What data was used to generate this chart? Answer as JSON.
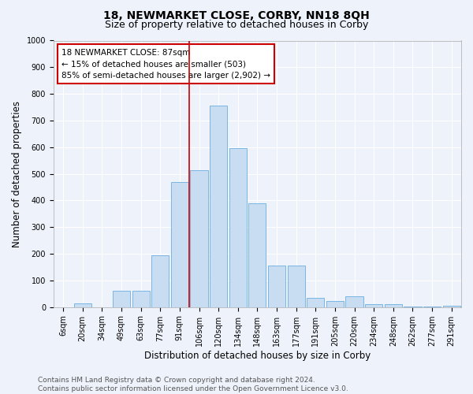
{
  "title": "18, NEWMARKET CLOSE, CORBY, NN18 8QH",
  "subtitle": "Size of property relative to detached houses in Corby",
  "xlabel": "Distribution of detached houses by size in Corby",
  "ylabel": "Number of detached properties",
  "categories": [
    "6sqm",
    "20sqm",
    "34sqm",
    "49sqm",
    "63sqm",
    "77sqm",
    "91sqm",
    "106sqm",
    "120sqm",
    "134sqm",
    "148sqm",
    "163sqm",
    "177sqm",
    "191sqm",
    "205sqm",
    "220sqm",
    "234sqm",
    "248sqm",
    "262sqm",
    "277sqm",
    "291sqm"
  ],
  "values": [
    0,
    13,
    0,
    60,
    60,
    195,
    470,
    515,
    755,
    595,
    390,
    155,
    155,
    35,
    22,
    40,
    10,
    10,
    2,
    2,
    5
  ],
  "bar_color": "#c9ddf2",
  "bar_edge_color": "#6aaee0",
  "vline_color": "#cc0000",
  "vline_position": 6.5,
  "annotation_text": "18 NEWMARKET CLOSE: 87sqm\n← 15% of detached houses are smaller (503)\n85% of semi-detached houses are larger (2,902) →",
  "annotation_box_facecolor": "#ffffff",
  "annotation_box_edgecolor": "#cc0000",
  "ylim": [
    0,
    1000
  ],
  "yticks": [
    0,
    100,
    200,
    300,
    400,
    500,
    600,
    700,
    800,
    900,
    1000
  ],
  "footer": "Contains HM Land Registry data © Crown copyright and database right 2024.\nContains public sector information licensed under the Open Government Licence v3.0.",
  "bg_color": "#eef2fa",
  "grid_color": "#ffffff",
  "title_fontsize": 10,
  "subtitle_fontsize": 9,
  "axis_label_fontsize": 8.5,
  "tick_fontsize": 7,
  "annot_fontsize": 7.5,
  "footer_fontsize": 6.5
}
